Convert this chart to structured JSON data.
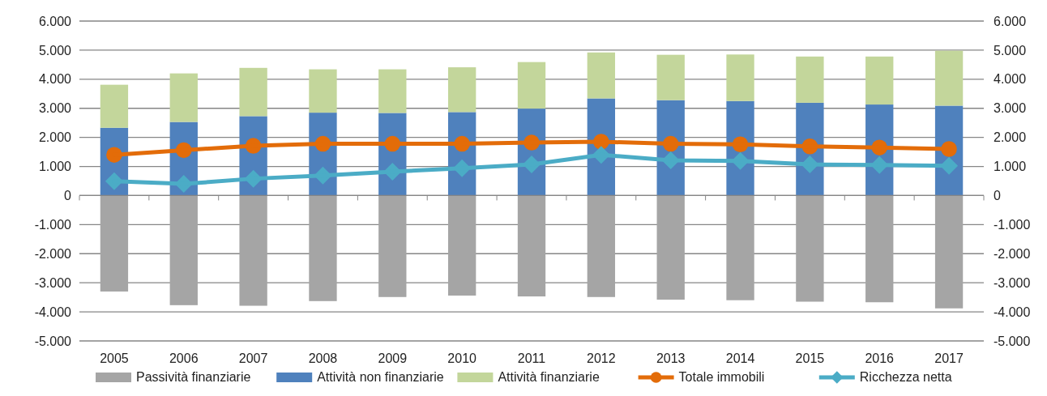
{
  "chart_data": {
    "type": "bar",
    "stacked": true,
    "categories": [
      "2005",
      "2006",
      "2007",
      "2008",
      "2009",
      "2010",
      "2011",
      "2012",
      "2013",
      "2014",
      "2015",
      "2016",
      "2017"
    ],
    "series": [
      {
        "name": "Passività finanziarie",
        "color": "#a5a5a5",
        "values": [
          -3300,
          -3770,
          -3790,
          -3630,
          -3490,
          -3440,
          -3470,
          -3490,
          -3580,
          -3600,
          -3650,
          -3670,
          -3880
        ]
      },
      {
        "name": "Attività non finanziarie",
        "color": "#4f81bd",
        "values": [
          2330,
          2530,
          2730,
          2850,
          2840,
          2870,
          2990,
          3340,
          3280,
          3250,
          3190,
          3130,
          3090
        ]
      },
      {
        "name": "Attività finanziarie",
        "color": "#c3d69b",
        "values": [
          1480,
          1670,
          1660,
          1490,
          1500,
          1540,
          1600,
          1580,
          1560,
          1600,
          1590,
          1650,
          1890
        ]
      },
      {
        "name": "Totale immobili",
        "color": "#e36c09",
        "type": "line",
        "marker": "circle",
        "values": [
          1400,
          1560,
          1710,
          1780,
          1780,
          1780,
          1820,
          1850,
          1780,
          1760,
          1690,
          1650,
          1600
        ]
      },
      {
        "name": "Ricchezza netta",
        "color": "#4bacc6",
        "type": "line",
        "marker": "diamond",
        "values": [
          490,
          400,
          580,
          690,
          820,
          940,
          1070,
          1400,
          1210,
          1190,
          1070,
          1050,
          1020
        ]
      }
    ],
    "ylim": [
      -5000,
      6000
    ],
    "yticks": [
      {
        "value": -5000,
        "label": "-5.000"
      },
      {
        "value": -4000,
        "label": "-4.000"
      },
      {
        "value": -3000,
        "label": "-3.000"
      },
      {
        "value": -2000,
        "label": "-2.000"
      },
      {
        "value": -1000,
        "label": "-1.000"
      },
      0,
      {
        "value": 1000,
        "label": "1.000"
      },
      {
        "value": 2000,
        "label": "2.000"
      },
      {
        "value": 3000,
        "label": "3.000"
      },
      {
        "value": 4000,
        "label": "4.000"
      },
      {
        "value": 5000,
        "label": "5.000"
      },
      {
        "value": 6000,
        "label": "6.000"
      }
    ],
    "y2lim": [
      -5000,
      6000
    ],
    "y2ticks": [
      {
        "value": -5000,
        "label": "-5.000"
      },
      {
        "value": -4000,
        "label": "-4.000"
      },
      {
        "value": -3000,
        "label": "-3.000"
      },
      {
        "value": -2000,
        "label": "-2.000"
      },
      {
        "value": -1000,
        "label": "-1.000"
      },
      0,
      {
        "value": 1000,
        "label": "1.000"
      },
      {
        "value": 2000,
        "label": "2.000"
      },
      {
        "value": 3000,
        "label": "3.000"
      },
      {
        "value": 4000,
        "label": "4.000"
      },
      {
        "value": 5000,
        "label": "5.000"
      },
      {
        "value": 6000,
        "label": "6.000"
      }
    ],
    "grid": "y",
    "legend": "bottom"
  }
}
